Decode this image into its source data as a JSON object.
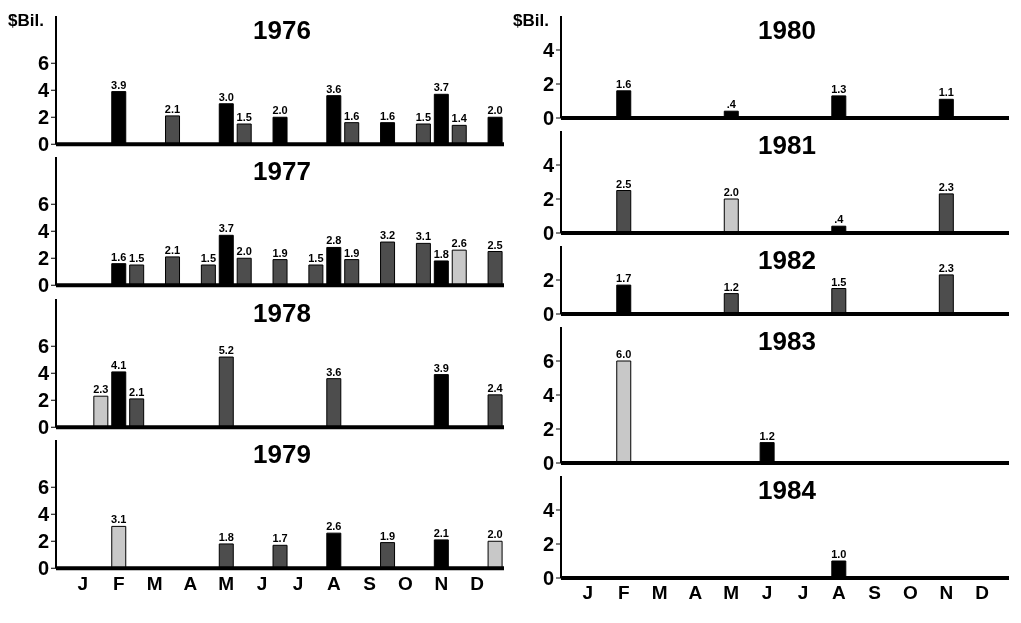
{
  "chart_data": [
    {
      "type": "bar",
      "title": "1976",
      "ylabel": "$Bil.",
      "tick_labels": "y",
      "categories": [
        null,
        null,
        null,
        null,
        null,
        null,
        null,
        null,
        null,
        null,
        null,
        null,
        null,
        null,
        null,
        null,
        null,
        null,
        null,
        null,
        null,
        null,
        null,
        null,
        null
      ],
      "values": [
        null,
        null,
        null,
        3.9,
        null,
        null,
        2.1,
        null,
        null,
        3.0,
        1.5,
        null,
        2.0,
        null,
        null,
        3.6,
        1.6,
        null,
        1.6,
        null,
        1.5,
        3.7,
        1.4,
        null,
        2.0
      ],
      "value_labels": [
        null,
        null,
        null,
        "3.9",
        null,
        null,
        "2.1",
        null,
        null,
        "3.0",
        "1.5",
        null,
        "2.0",
        null,
        null,
        "3.6",
        "1.6",
        null,
        "1.6",
        null,
        "1.5",
        "3.7",
        "1.4",
        null,
        "2.0"
      ],
      "colors": [
        null,
        null,
        null,
        "#000000",
        null,
        null,
        "#4d4d4d",
        null,
        null,
        "#000000",
        "#4d4d4d",
        null,
        "#000000",
        null,
        null,
        "#000000",
        "#4d4d4d",
        null,
        "#000000",
        null,
        "#4d4d4d",
        "#000000",
        "#4d4d4d",
        null,
        "#000000"
      ],
      "ylim": [
        0,
        9.5
      ],
      "yticks": [
        0,
        2,
        4,
        6
      ]
    },
    {
      "type": "bar",
      "title": "1977",
      "tick_labels": "y",
      "categories": [
        null,
        null,
        null,
        null,
        null,
        null,
        null,
        null,
        null,
        null,
        null,
        null,
        null,
        null,
        null,
        null,
        null,
        null,
        null,
        null,
        null,
        null,
        null,
        null,
        null
      ],
      "values": [
        null,
        null,
        null,
        1.6,
        1.5,
        null,
        2.1,
        null,
        1.5,
        3.7,
        2.0,
        null,
        1.9,
        null,
        1.5,
        2.8,
        1.9,
        null,
        3.2,
        null,
        3.1,
        1.8,
        2.6,
        null,
        2.5
      ],
      "value_labels": [
        null,
        null,
        null,
        "1.6",
        "1.5",
        null,
        "2.1",
        null,
        "1.5",
        "3.7",
        "2.0",
        null,
        "1.9",
        null,
        "1.5",
        "2.8",
        "1.9",
        null,
        "3.2",
        null,
        "3.1",
        "1.8",
        "2.6",
        null,
        "2.5"
      ],
      "colors": [
        null,
        null,
        null,
        "#000000",
        "#4d4d4d",
        null,
        "#4d4d4d",
        null,
        "#4d4d4d",
        "#000000",
        "#4d4d4d",
        null,
        "#4d4d4d",
        null,
        "#4d4d4d",
        "#000000",
        "#4d4d4d",
        null,
        "#4d4d4d",
        null,
        "#4d4d4d",
        "#000000",
        "#c8c8c8",
        null,
        "#4d4d4d"
      ],
      "ylim": [
        0,
        9.5
      ],
      "yticks": [
        0,
        2,
        4,
        6
      ]
    },
    {
      "type": "bar",
      "title": "1978",
      "tick_labels": "y",
      "categories": [
        null,
        null,
        null,
        null,
        null,
        null,
        null,
        null,
        null,
        null,
        null,
        null,
        null,
        null,
        null,
        null,
        null,
        null,
        null,
        null,
        null,
        null,
        null,
        null,
        null
      ],
      "values": [
        null,
        null,
        2.3,
        4.1,
        2.1,
        null,
        null,
        null,
        null,
        5.2,
        null,
        null,
        null,
        null,
        null,
        3.6,
        null,
        null,
        null,
        null,
        null,
        3.9,
        null,
        null,
        2.4
      ],
      "value_labels": [
        null,
        null,
        "2.3",
        "4.1",
        "2.1",
        null,
        null,
        null,
        null,
        "5.2",
        null,
        null,
        null,
        null,
        null,
        "3.6",
        null,
        null,
        null,
        null,
        null,
        "3.9",
        null,
        null,
        "2.4"
      ],
      "colors": [
        null,
        null,
        "#c8c8c8",
        "#000000",
        "#4d4d4d",
        null,
        null,
        null,
        null,
        "#4d4d4d",
        null,
        null,
        null,
        null,
        null,
        "#4d4d4d",
        null,
        null,
        null,
        null,
        null,
        "#000000",
        null,
        null,
        "#4d4d4d"
      ],
      "ylim": [
        0,
        9.5
      ],
      "yticks": [
        0,
        2,
        4,
        6
      ]
    },
    {
      "type": "bar",
      "title": "1979",
      "categories": [
        null,
        "J",
        null,
        "F",
        null,
        "M",
        null,
        "A",
        null,
        "M",
        null,
        "J",
        null,
        "J",
        null,
        "A",
        null,
        "S",
        null,
        "O",
        null,
        "N",
        null,
        "D",
        null
      ],
      "values": [
        null,
        null,
        null,
        3.1,
        null,
        null,
        null,
        null,
        null,
        1.8,
        null,
        null,
        1.7,
        null,
        null,
        2.6,
        null,
        null,
        1.9,
        null,
        null,
        2.1,
        null,
        null,
        2.0
      ],
      "value_labels": [
        null,
        null,
        null,
        "3.1",
        null,
        null,
        null,
        null,
        null,
        "1.8",
        null,
        null,
        "1.7",
        null,
        null,
        "2.6",
        null,
        null,
        "1.9",
        null,
        null,
        "2.1",
        null,
        null,
        "2.0"
      ],
      "colors": [
        null,
        null,
        null,
        "#c8c8c8",
        null,
        null,
        null,
        null,
        null,
        "#4d4d4d",
        null,
        null,
        "#4d4d4d",
        null,
        null,
        "#000000",
        null,
        null,
        "#4d4d4d",
        null,
        null,
        "#000000",
        null,
        null,
        "#c8c8c8"
      ],
      "ylim": [
        0,
        9.5
      ],
      "yticks": [
        0,
        2,
        4,
        6
      ]
    },
    {
      "type": "bar",
      "title": "1980",
      "ylabel": "$Bil.",
      "tick_labels": "y",
      "categories": [
        null,
        null,
        null,
        null,
        null,
        null,
        null,
        null,
        null,
        null,
        null,
        null,
        null,
        null,
        null,
        null,
        null,
        null,
        null,
        null,
        null,
        null,
        null,
        null,
        null
      ],
      "values": [
        null,
        null,
        null,
        1.6,
        null,
        null,
        null,
        null,
        null,
        0.4,
        null,
        null,
        null,
        null,
        null,
        1.3,
        null,
        null,
        null,
        null,
        null,
        1.1,
        null,
        null,
        null
      ],
      "value_labels": [
        null,
        null,
        null,
        "1.6",
        null,
        null,
        null,
        null,
        null,
        ".4",
        null,
        null,
        null,
        null,
        null,
        "1.3",
        null,
        null,
        null,
        null,
        null,
        "1.1",
        null,
        null,
        null
      ],
      "colors": [
        null,
        null,
        null,
        "#000000",
        null,
        null,
        null,
        null,
        null,
        "#000000",
        null,
        null,
        null,
        null,
        null,
        "#000000",
        null,
        null,
        null,
        null,
        null,
        "#000000",
        null,
        null,
        null
      ],
      "ylim": [
        0,
        6
      ],
      "yticks": [
        0,
        2,
        4
      ]
    },
    {
      "type": "bar",
      "title": "1981",
      "tick_labels": "y",
      "categories": [
        null,
        null,
        null,
        null,
        null,
        null,
        null,
        null,
        null,
        null,
        null,
        null,
        null,
        null,
        null,
        null,
        null,
        null,
        null,
        null,
        null,
        null,
        null,
        null,
        null
      ],
      "values": [
        null,
        null,
        null,
        2.5,
        null,
        null,
        null,
        null,
        null,
        2.0,
        null,
        null,
        null,
        null,
        null,
        0.4,
        null,
        null,
        null,
        null,
        null,
        2.3,
        null,
        null,
        null
      ],
      "value_labels": [
        null,
        null,
        null,
        "2.5",
        null,
        null,
        null,
        null,
        null,
        "2.0",
        null,
        null,
        null,
        null,
        null,
        ".4",
        null,
        null,
        null,
        null,
        null,
        "2.3",
        null,
        null,
        null
      ],
      "colors": [
        null,
        null,
        null,
        "#4d4d4d",
        null,
        null,
        null,
        null,
        null,
        "#c8c8c8",
        null,
        null,
        null,
        null,
        null,
        "#000000",
        null,
        null,
        null,
        null,
        null,
        "#4d4d4d",
        null,
        null,
        null
      ],
      "ylim": [
        0,
        6
      ],
      "yticks": [
        0,
        2,
        4
      ]
    },
    {
      "type": "bar",
      "title": "1982",
      "tick_labels": "y",
      "categories": [
        null,
        null,
        null,
        null,
        null,
        null,
        null,
        null,
        null,
        null,
        null,
        null,
        null,
        null,
        null,
        null,
        null,
        null,
        null,
        null,
        null,
        null,
        null,
        null,
        null
      ],
      "values": [
        null,
        null,
        null,
        1.7,
        null,
        null,
        null,
        null,
        null,
        1.2,
        null,
        null,
        null,
        null,
        null,
        1.5,
        null,
        null,
        null,
        null,
        null,
        2.3,
        null,
        null,
        null
      ],
      "value_labels": [
        null,
        null,
        null,
        "1.7",
        null,
        null,
        null,
        null,
        null,
        "1.2",
        null,
        null,
        null,
        null,
        null,
        "1.5",
        null,
        null,
        null,
        null,
        null,
        "2.3",
        null,
        null,
        null
      ],
      "colors": [
        null,
        null,
        null,
        "#000000",
        null,
        null,
        null,
        null,
        null,
        "#4d4d4d",
        null,
        null,
        null,
        null,
        null,
        "#4d4d4d",
        null,
        null,
        null,
        null,
        null,
        "#4d4d4d",
        null,
        null,
        null
      ],
      "ylim": [
        0,
        4
      ],
      "yticks": [
        0,
        2
      ]
    },
    {
      "type": "bar",
      "title": "1983",
      "tick_labels": "y",
      "categories": [
        null,
        null,
        null,
        null,
        null,
        null,
        null,
        null,
        null,
        null,
        null,
        null,
        null,
        null,
        null,
        null,
        null,
        null,
        null,
        null,
        null,
        null,
        null,
        null,
        null
      ],
      "values": [
        null,
        null,
        null,
        6.0,
        null,
        null,
        null,
        null,
        null,
        null,
        null,
        1.2,
        null,
        null,
        null,
        null,
        null,
        null,
        null,
        null,
        null,
        null,
        null,
        null,
        null
      ],
      "value_labels": [
        null,
        null,
        null,
        "6.0",
        null,
        null,
        null,
        null,
        null,
        null,
        null,
        "1.2",
        null,
        null,
        null,
        null,
        null,
        null,
        null,
        null,
        null,
        null,
        null,
        null,
        null
      ],
      "colors": [
        null,
        null,
        null,
        "#c8c8c8",
        null,
        null,
        null,
        null,
        null,
        null,
        null,
        "#000000",
        null,
        null,
        null,
        null,
        null,
        null,
        null,
        null,
        null,
        null,
        null,
        null,
        null
      ],
      "ylim": [
        0,
        8
      ],
      "yticks": [
        0,
        2,
        4,
        6
      ]
    },
    {
      "type": "bar",
      "title": "1984",
      "categories": [
        null,
        "J",
        null,
        "F",
        null,
        "M",
        null,
        "A",
        null,
        "M",
        null,
        "J",
        null,
        "J",
        null,
        "A",
        null,
        "S",
        null,
        "O",
        null,
        "N",
        null,
        "D",
        null
      ],
      "values": [
        null,
        null,
        null,
        null,
        null,
        null,
        null,
        null,
        null,
        null,
        null,
        null,
        null,
        null,
        null,
        1.0,
        null,
        null,
        null,
        null,
        null,
        null,
        null,
        null,
        null
      ],
      "value_labels": [
        null,
        null,
        null,
        null,
        null,
        null,
        null,
        null,
        null,
        null,
        null,
        null,
        null,
        null,
        null,
        "1.0",
        null,
        null,
        null,
        null,
        null,
        null,
        null,
        null,
        null
      ],
      "colors": [
        null,
        null,
        null,
        null,
        null,
        null,
        null,
        null,
        null,
        null,
        null,
        null,
        null,
        null,
        null,
        "#000000",
        null,
        null,
        null,
        null,
        null,
        null,
        null,
        null,
        null
      ],
      "ylim": [
        0,
        6
      ],
      "yticks": [
        0,
        2,
        4
      ]
    }
  ]
}
